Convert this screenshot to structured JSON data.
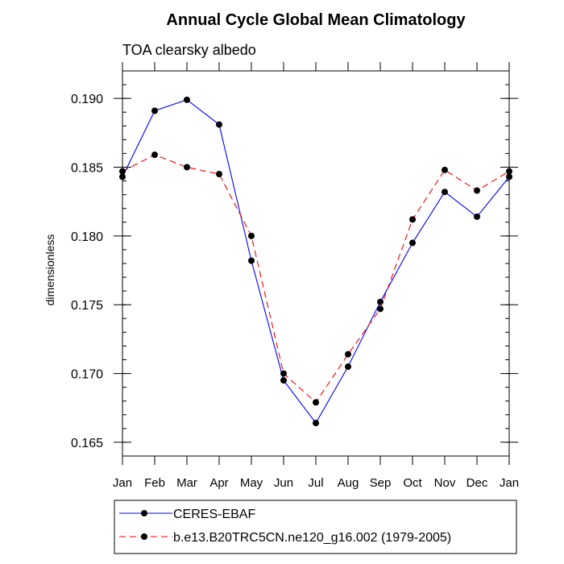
{
  "chart_data": {
    "type": "line",
    "title": "Annual Cycle Global Mean Climatology",
    "subtitle": "TOA clearsky albedo",
    "xlabel": "",
    "ylabel": "dimensionless",
    "categories": [
      "Jan",
      "Feb",
      "Mar",
      "Apr",
      "May",
      "Jun",
      "Jul",
      "Aug",
      "Sep",
      "Oct",
      "Nov",
      "Dec",
      "Jan"
    ],
    "ylim": [
      0.164,
      0.192
    ],
    "yticks": [
      {
        "value": 0.165,
        "label": "0.165"
      },
      {
        "value": 0.17,
        "label": "0.170"
      },
      {
        "value": 0.175,
        "label": "0.175"
      },
      {
        "value": 0.18,
        "label": "0.180"
      },
      {
        "value": 0.185,
        "label": "0.185"
      },
      {
        "value": 0.19,
        "label": "0.190"
      }
    ],
    "yminor_step": 0.001,
    "series": [
      {
        "name": "CERES-EBAF",
        "color": "#0000ff",
        "dashed": false,
        "values": [
          0.1843,
          0.1891,
          0.1899,
          0.1881,
          0.1782,
          0.1695,
          0.1664,
          0.1705,
          0.1752,
          0.1795,
          0.1832,
          0.1814,
          0.1843
        ]
      },
      {
        "name": "b.e13.B20TRC5CN.ne120_g16.002 (1979-2005)",
        "color": "#ff0000",
        "dashed": true,
        "values": [
          0.1847,
          0.1859,
          0.185,
          0.1845,
          0.18,
          0.17,
          0.1679,
          0.1714,
          0.1747,
          0.1812,
          0.1848,
          0.1833,
          0.1847
        ]
      }
    ],
    "grid": false,
    "legend_position": "bottom"
  }
}
